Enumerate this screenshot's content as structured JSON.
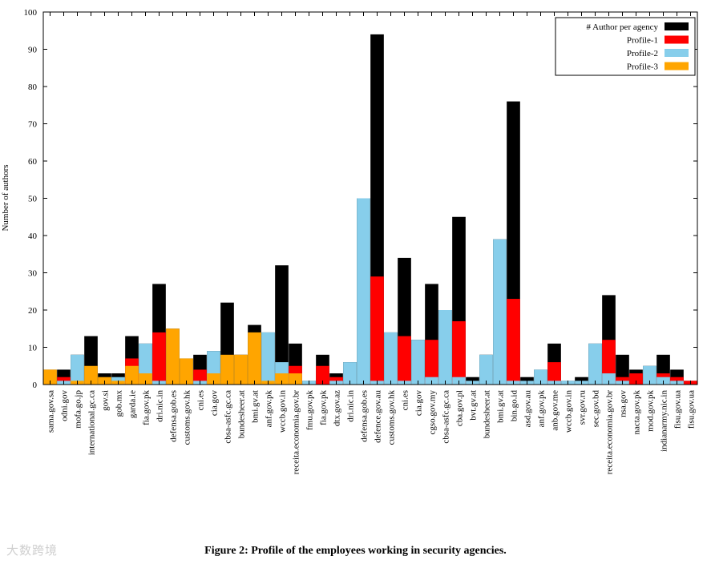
{
  "chart_data": {
    "type": "bar",
    "ylabel": "Number of authors",
    "xlabel": "",
    "ylim": [
      0,
      100
    ],
    "yticks": [
      0,
      10,
      20,
      30,
      40,
      50,
      60,
      70,
      80,
      90,
      100
    ],
    "legend_position": "top-right",
    "categories": [
      "sama.gov.sa",
      "odni.gov",
      "mofa.go.jp",
      "international.gc.ca",
      "gov.si",
      "gob.mx",
      "garda.ie",
      "fia.gov.pk",
      "dri.nic.in",
      "defensa.gob.es",
      "customs.gov.hk",
      "cni.es",
      "cia.gov",
      "cbsa-asfc.gc.ca",
      "bundesheer.at",
      "bmi.gv.at",
      "anf.gov.pk",
      "wccb.gov.in",
      "receita.economia.gov.br",
      "fmu.gov.pk",
      "fia.gov.pk",
      "dtx.gov.az",
      "dri.nic.in",
      "defensa.gob.es",
      "defence.gov.au",
      "customs.gov.hk",
      "cni.es",
      "cia.gov",
      "cgso.gov.my",
      "cbsa-asfc.gc.ca",
      "cba.gov.pl",
      "bvt.gv.at",
      "bundesheer.at",
      "bmi.gv.at",
      "bin.go.id",
      "asd.gov.au",
      "anf.gov.pk",
      "anb.gov.me",
      "wccb.gov.in",
      "svr.gov.ru",
      "sec.gov.bd",
      "receita.economia.gov.br",
      "nsa.gov",
      "nacta.gov.pk",
      "mod.gov.pk",
      "indianarmy.nic.in",
      "fisu.gov.ua",
      "fisu.gov.ua"
    ],
    "series": [
      {
        "name": "# Author per agency",
        "color": "#000000",
        "values": [
          4,
          4,
          8,
          13,
          3,
          3,
          13,
          11,
          27,
          15,
          7,
          8,
          9,
          22,
          8,
          16,
          14,
          32,
          11,
          1,
          8,
          3,
          6,
          50,
          94,
          14,
          34,
          12,
          27,
          20,
          45,
          2,
          8,
          39,
          76,
          2,
          4,
          11,
          1,
          2,
          11,
          24,
          8,
          4,
          5,
          8,
          4,
          1
        ]
      },
      {
        "name": "Profile-1",
        "color": "#ff0000",
        "values": [
          0,
          2,
          0,
          0,
          0,
          0,
          7,
          0,
          14,
          0,
          0,
          4,
          0,
          0,
          0,
          0,
          0,
          0,
          5,
          0,
          5,
          2,
          0,
          0,
          29,
          0,
          13,
          0,
          12,
          0,
          17,
          0,
          0,
          0,
          23,
          0,
          0,
          6,
          0,
          0,
          0,
          12,
          2,
          3,
          0,
          3,
          2,
          1
        ]
      },
      {
        "name": "Profile-2",
        "color": "#87ceeb",
        "values": [
          0,
          1,
          8,
          0,
          0,
          2,
          0,
          11,
          1,
          0,
          0,
          1,
          9,
          0,
          0,
          0,
          14,
          6,
          0,
          1,
          0,
          1,
          6,
          50,
          1,
          14,
          1,
          12,
          2,
          20,
          2,
          1,
          8,
          39,
          1,
          1,
          4,
          1,
          1,
          1,
          11,
          3,
          1,
          0,
          5,
          2,
          1,
          0
        ]
      },
      {
        "name": "Profile-3",
        "color": "#ffa500",
        "values": [
          4,
          0,
          1,
          5,
          2,
          1,
          5,
          3,
          0,
          15,
          7,
          0,
          3,
          8,
          8,
          14,
          1,
          3,
          3,
          0,
          0,
          0,
          0,
          0,
          0,
          0,
          0,
          0,
          0,
          0,
          0,
          0,
          0,
          0,
          0,
          0,
          0,
          0,
          0,
          0,
          0,
          0,
          0,
          0,
          0,
          0,
          0,
          0
        ]
      }
    ]
  },
  "caption": "Figure 2: Profile of the employees working in security agencies.",
  "watermark": "大数跨境"
}
